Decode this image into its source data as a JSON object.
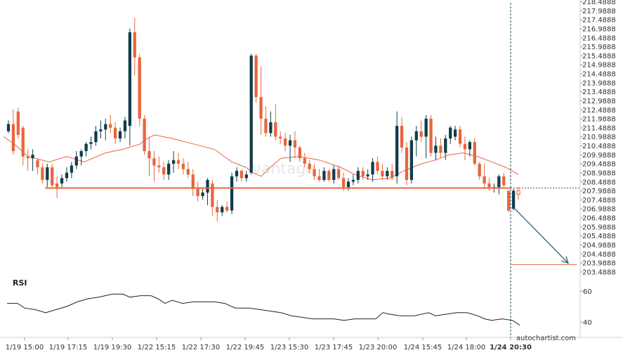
{
  "chart_data": {
    "type": "candlestick",
    "price_axis": {
      "ticks": [
        "218.4888",
        "217.9888",
        "217.4888",
        "216.9888",
        "216.4888",
        "215.9888",
        "215.4888",
        "214.9888",
        "214.4888",
        "213.9888",
        "213.4888",
        "212.9888",
        "212.4888",
        "211.9888",
        "211.4888",
        "210.9888",
        "210.4888",
        "209.9888",
        "209.4888",
        "208.9888",
        "208.4888",
        "207.9888",
        "207.4888",
        "206.9888",
        "206.4888",
        "205.9888",
        "205.4888",
        "204.9888",
        "204.4888",
        "203.9888",
        "203.4888"
      ],
      "range": [
        203.2888,
        218.5888
      ]
    },
    "x_ticks": [
      "1/19 15:00",
      "1/19 17:15",
      "1/19 19:30",
      "1/22 15:15",
      "1/22 17:30",
      "1/22 19:45",
      "1/23 15:30",
      "1/23 17:45",
      "1/23 20:00",
      "1/24 15:45",
      "1/24 18:00",
      "1/24 20:30"
    ],
    "candles": [
      [
        211.3,
        211.9,
        211.2,
        211.7
      ],
      [
        211.7,
        212.5,
        210.0,
        210.2
      ],
      [
        212.4,
        212.6,
        210.9,
        211.1
      ],
      [
        211.5,
        211.6,
        209.4,
        209.9
      ],
      [
        209.9,
        210.3,
        209.1,
        209.8
      ],
      [
        209.8,
        210.3,
        209.1,
        210.0
      ],
      [
        209.7,
        209.8,
        208.9,
        209.3
      ],
      [
        209.3,
        209.5,
        208.4,
        208.6
      ],
      [
        208.6,
        209.5,
        208.2,
        209.3
      ],
      [
        209.3,
        209.5,
        208.2,
        208.3
      ],
      [
        208.4,
        208.8,
        207.6,
        208.2
      ],
      [
        208.4,
        208.9,
        208.2,
        208.7
      ],
      [
        208.7,
        209.3,
        208.5,
        209.0
      ],
      [
        209.0,
        209.6,
        208.7,
        209.4
      ],
      [
        209.4,
        210.2,
        209.2,
        209.9
      ],
      [
        209.9,
        210.3,
        209.4,
        210.2
      ],
      [
        210.2,
        210.7,
        209.9,
        210.6
      ],
      [
        210.6,
        211.0,
        210.3,
        210.7
      ],
      [
        210.7,
        211.6,
        210.5,
        211.3
      ],
      [
        211.3,
        211.9,
        210.9,
        211.4
      ],
      [
        211.4,
        212.0,
        210.8,
        211.7
      ],
      [
        211.7,
        212.2,
        211.2,
        211.5
      ],
      [
        211.5,
        211.8,
        210.6,
        210.9
      ],
      [
        210.9,
        211.5,
        210.7,
        211.3
      ],
      [
        211.3,
        212.1,
        210.9,
        211.9
      ],
      [
        211.6,
        217.0,
        210.5,
        216.8
      ],
      [
        216.8,
        217.6,
        214.4,
        215.4
      ],
      [
        215.4,
        215.6,
        211.6,
        212.0
      ],
      [
        212.0,
        212.2,
        210.0,
        210.2
      ],
      [
        210.2,
        211.0,
        208.8,
        209.8
      ],
      [
        209.8,
        210.2,
        208.5,
        209.4
      ],
      [
        209.4,
        209.9,
        209.0,
        209.3
      ],
      [
        209.3,
        209.6,
        208.6,
        208.9
      ],
      [
        208.9,
        209.7,
        208.6,
        209.5
      ],
      [
        209.5,
        210.2,
        209.0,
        209.7
      ],
      [
        209.7,
        210.1,
        209.2,
        209.5
      ],
      [
        209.5,
        209.8,
        208.9,
        209.2
      ],
      [
        209.2,
        209.6,
        208.7,
        208.9
      ],
      [
        208.9,
        209.2,
        207.7,
        208.1
      ],
      [
        208.1,
        208.5,
        207.4,
        207.7
      ],
      [
        207.7,
        208.1,
        207.5,
        207.9
      ],
      [
        207.9,
        208.7,
        207.2,
        208.6
      ],
      [
        208.4,
        208.6,
        206.6,
        207.1
      ],
      [
        207.1,
        207.5,
        206.3,
        206.8
      ],
      [
        206.8,
        207.2,
        206.6,
        207.1
      ],
      [
        207.1,
        207.4,
        206.8,
        206.9
      ],
      [
        206.9,
        209.0,
        206.7,
        208.8
      ],
      [
        208.8,
        209.3,
        208.5,
        209.1
      ],
      [
        209.1,
        209.2,
        208.5,
        208.7
      ],
      [
        208.7,
        209.1,
        208.5,
        208.9
      ],
      [
        209.0,
        215.6,
        208.9,
        215.5
      ],
      [
        215.5,
        215.6,
        212.9,
        213.2
      ],
      [
        213.2,
        214.9,
        211.1,
        212.0
      ],
      [
        212.0,
        212.7,
        211.0,
        211.2
      ],
      [
        211.2,
        212.4,
        211.0,
        211.8
      ],
      [
        211.8,
        212.8,
        210.8,
        211.0
      ],
      [
        211.0,
        211.3,
        210.6,
        210.9
      ],
      [
        210.9,
        211.2,
        210.2,
        210.5
      ],
      [
        210.5,
        211.1,
        209.6,
        210.8
      ],
      [
        210.8,
        211.3,
        209.8,
        210.4
      ],
      [
        210.4,
        210.5,
        209.6,
        209.8
      ],
      [
        209.8,
        210.1,
        209.3,
        209.5
      ],
      [
        209.5,
        209.7,
        209.0,
        209.2
      ],
      [
        209.2,
        209.5,
        208.6,
        208.8
      ],
      [
        208.8,
        209.2,
        208.5,
        208.6
      ],
      [
        208.6,
        209.3,
        208.5,
        209.1
      ],
      [
        209.1,
        209.2,
        208.5,
        208.6
      ],
      [
        208.6,
        209.4,
        208.4,
        209.2
      ],
      [
        209.2,
        209.4,
        208.6,
        208.7
      ],
      [
        208.7,
        209.0,
        208.0,
        208.2
      ],
      [
        208.2,
        208.7,
        208.0,
        208.5
      ],
      [
        208.5,
        208.9,
        208.3,
        208.6
      ],
      [
        208.6,
        209.3,
        208.4,
        209.1
      ],
      [
        209.1,
        209.3,
        208.6,
        208.8
      ],
      [
        208.8,
        209.2,
        208.6,
        208.9
      ],
      [
        208.9,
        209.8,
        208.5,
        209.6
      ],
      [
        209.6,
        209.9,
        208.9,
        209.1
      ],
      [
        209.1,
        209.5,
        208.6,
        208.8
      ],
      [
        208.8,
        209.3,
        208.6,
        209.1
      ],
      [
        209.1,
        209.5,
        208.6,
        208.7
      ],
      [
        208.8,
        212.4,
        208.4,
        211.6
      ],
      [
        211.6,
        212.1,
        210.1,
        210.4
      ],
      [
        210.4,
        210.7,
        208.3,
        208.6
      ],
      [
        208.6,
        211.0,
        208.4,
        210.8
      ],
      [
        210.8,
        211.6,
        209.9,
        211.3
      ],
      [
        211.3,
        211.9,
        210.7,
        211.0
      ],
      [
        211.0,
        212.2,
        209.8,
        212.0
      ],
      [
        212.0,
        212.2,
        209.9,
        210.1
      ],
      [
        210.1,
        211.0,
        209.7,
        210.5
      ],
      [
        210.5,
        210.9,
        209.8,
        210.1
      ],
      [
        210.1,
        211.1,
        209.7,
        210.9
      ],
      [
        210.9,
        211.6,
        210.6,
        211.5
      ],
      [
        211.0,
        211.6,
        210.8,
        211.4
      ],
      [
        211.4,
        211.6,
        210.4,
        210.6
      ],
      [
        210.6,
        211.0,
        209.7,
        210.3
      ],
      [
        210.3,
        210.8,
        209.9,
        210.7
      ],
      [
        210.7,
        210.9,
        209.4,
        209.5
      ],
      [
        209.5,
        209.6,
        208.6,
        208.8
      ],
      [
        208.8,
        209.5,
        208.1,
        208.4
      ],
      [
        208.4,
        208.7,
        208.0,
        208.2
      ],
      [
        208.2,
        208.4,
        207.9,
        208.2
      ],
      [
        208.2,
        208.9,
        207.8,
        208.8
      ],
      [
        208.8,
        209.0,
        208.2,
        208.3
      ],
      [
        208.0,
        208.0,
        206.8,
        206.9
      ],
      [
        207.0,
        208.1,
        206.9,
        208.0
      ],
      [
        208.0,
        208.2,
        207.5,
        207.8
      ]
    ],
    "moving_average": [
      [
        5,
        211.0
      ],
      [
        20,
        210.6
      ],
      [
        40,
        209.9
      ],
      [
        70,
        209.6
      ],
      [
        95,
        209.9
      ],
      [
        120,
        209.6
      ],
      [
        150,
        210.1
      ],
      [
        175,
        210.3
      ],
      [
        200,
        210.6
      ],
      [
        205,
        210.8
      ],
      [
        220,
        211.1
      ],
      [
        245,
        210.9
      ],
      [
        275,
        210.6
      ],
      [
        305,
        210.3
      ],
      [
        330,
        209.6
      ],
      [
        350,
        209.3
      ],
      [
        360,
        209.0
      ],
      [
        372,
        208.8
      ],
      [
        382,
        209.2
      ],
      [
        400,
        209.8
      ],
      [
        425,
        209.9
      ],
      [
        455,
        209.7
      ],
      [
        485,
        209.3
      ],
      [
        505,
        208.9
      ],
      [
        530,
        208.6
      ],
      [
        555,
        208.7
      ],
      [
        575,
        209.1
      ],
      [
        600,
        209.5
      ],
      [
        620,
        209.7
      ],
      [
        640,
        210.0
      ],
      [
        660,
        210.1
      ],
      [
        680,
        209.9
      ],
      [
        700,
        209.6
      ],
      [
        720,
        209.3
      ],
      [
        738,
        208.9
      ]
    ],
    "support_level": 208.15,
    "support_start_x": 64,
    "forecast_level": 203.9,
    "forecast_line_x": [
      728,
      821
    ],
    "rsi": {
      "label": "RSI",
      "ticks": [
        {
          "value": 60,
          "label": "60"
        },
        {
          "value": 40,
          "label": "40"
        }
      ],
      "range": [
        30,
        70
      ],
      "points": [
        [
          10,
          52
        ],
        [
          25,
          52
        ],
        [
          35,
          49
        ],
        [
          50,
          48
        ],
        [
          65,
          46
        ],
        [
          80,
          48
        ],
        [
          95,
          50
        ],
        [
          110,
          53
        ],
        [
          125,
          55
        ],
        [
          140,
          56
        ],
        [
          150,
          57
        ],
        [
          160,
          58
        ],
        [
          175,
          58
        ],
        [
          185,
          56
        ],
        [
          200,
          57
        ],
        [
          215,
          57
        ],
        [
          225,
          55
        ],
        [
          235,
          52
        ],
        [
          245,
          54
        ],
        [
          260,
          52
        ],
        [
          275,
          53
        ],
        [
          290,
          53
        ],
        [
          305,
          53
        ],
        [
          320,
          52
        ],
        [
          335,
          49
        ],
        [
          355,
          49
        ],
        [
          370,
          48
        ],
        [
          385,
          47
        ],
        [
          400,
          46
        ],
        [
          415,
          44
        ],
        [
          430,
          43
        ],
        [
          445,
          42
        ],
        [
          460,
          42
        ],
        [
          475,
          42
        ],
        [
          490,
          41
        ],
        [
          505,
          42
        ],
        [
          520,
          42
        ],
        [
          535,
          42
        ],
        [
          545,
          46
        ],
        [
          555,
          45
        ],
        [
          570,
          44
        ],
        [
          590,
          44
        ],
        [
          610,
          46
        ],
        [
          620,
          44
        ],
        [
          635,
          45
        ],
        [
          650,
          46
        ],
        [
          665,
          46
        ],
        [
          680,
          44
        ],
        [
          690,
          42
        ],
        [
          700,
          41
        ],
        [
          715,
          42
        ],
        [
          730,
          41
        ],
        [
          740,
          38
        ]
      ]
    },
    "current_time_line_x": 727,
    "colors": {
      "bull": "#0f3d4c",
      "bear": "#e8663d",
      "ma": "#e8663d",
      "support": "#e8663d",
      "rsi_line": "#222222",
      "arrow": "#1f5f72"
    },
    "watermark": "vantage",
    "brand": "autochartist.com"
  }
}
